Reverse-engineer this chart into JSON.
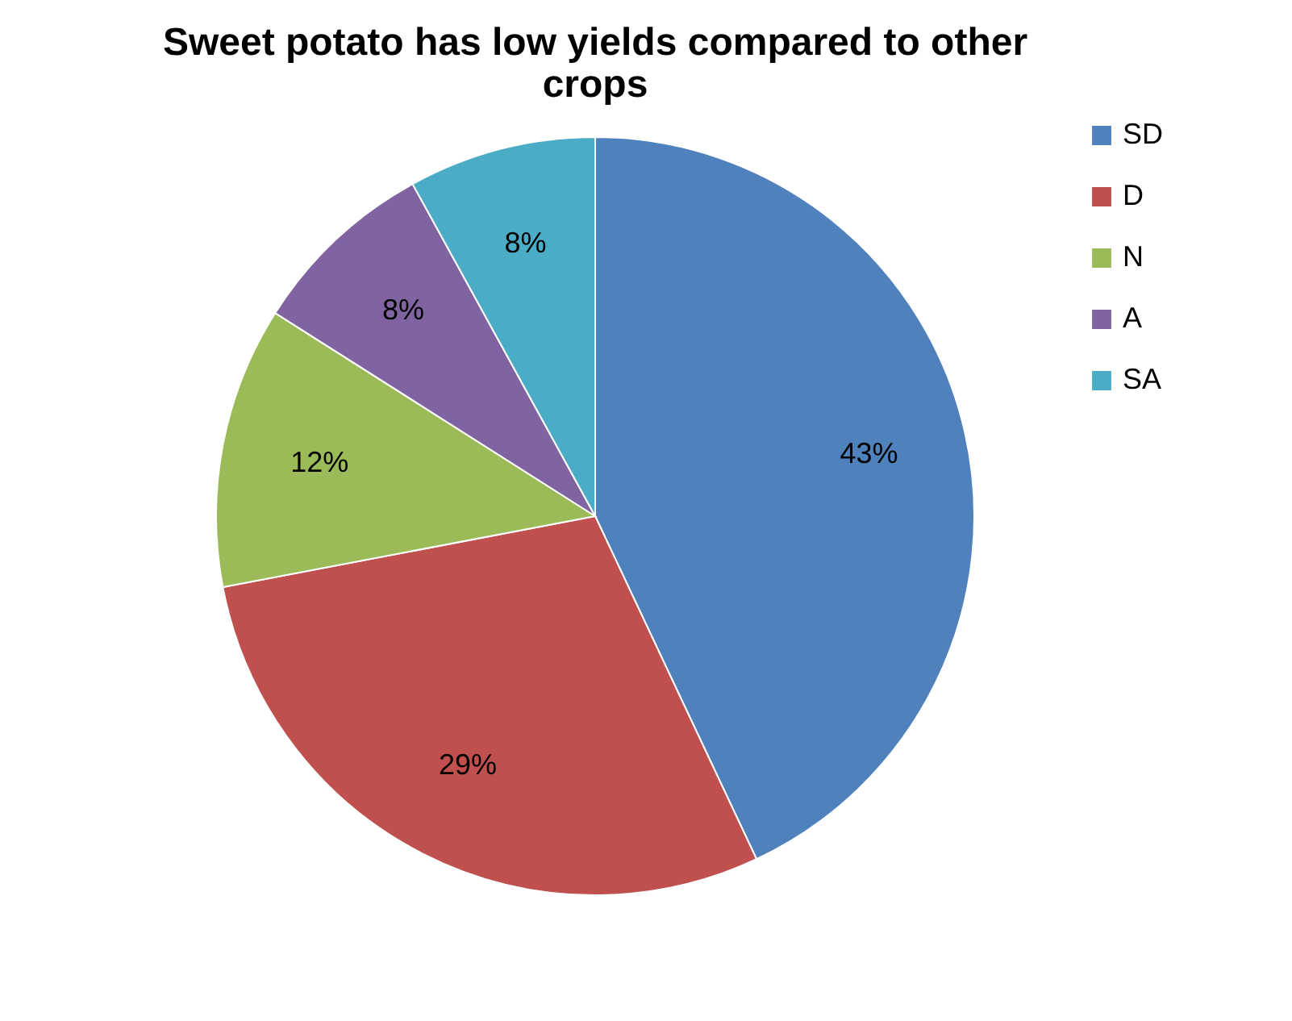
{
  "chart_data": {
    "type": "pie",
    "title": "Sweet potato has low yields compared to other crops",
    "categories": [
      "SD",
      "D",
      "N",
      "A",
      "SA"
    ],
    "values": [
      43,
      29,
      12,
      8,
      8
    ],
    "colors": [
      "#4f81bd",
      "#c0504d",
      "#9bbb59",
      "#8064a2",
      "#4bacc6"
    ],
    "value_labels": [
      "43%",
      "29%",
      "12%",
      "8%",
      "8%"
    ],
    "legend": "right"
  }
}
